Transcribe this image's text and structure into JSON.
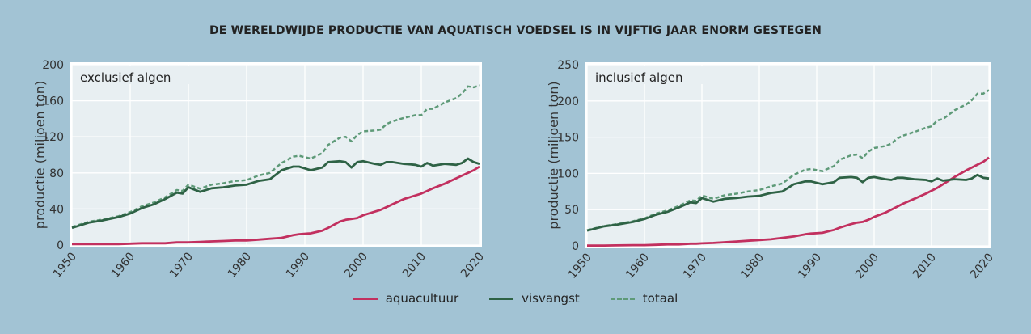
{
  "title": "DE WERELDWIJDE PRODUCTIE VAN AQUATISCH VOEDSEL IS IN VIJFTIG JAAR ENORM GESTEGEN",
  "colors": {
    "aquacultuur": "#c2305f",
    "visvangst": "#2e6245",
    "totaal": "#5e9a78",
    "plot_bg": "#e8eff2",
    "page_bg": "#a2c3d4"
  },
  "legend": [
    {
      "key": "aquacultuur",
      "label": "aquacultuur",
      "style": "solid"
    },
    {
      "key": "visvangst",
      "label": "visvangst",
      "style": "solid"
    },
    {
      "key": "totaal",
      "label": "totaal",
      "style": "dashed"
    }
  ],
  "chart_data": [
    {
      "type": "line",
      "panel_label": "exclusief algen",
      "ylabel": "productie (miljoen ton)",
      "xlabel": "",
      "xlim": [
        1950,
        2020
      ],
      "ylim": [
        0,
        200
      ],
      "xticks": [
        1950,
        1960,
        1970,
        1980,
        1990,
        2000,
        2010,
        2020
      ],
      "yticks": [
        0,
        40,
        80,
        120,
        160,
        200
      ],
      "grid": true,
      "x": [
        1950,
        1953,
        1955,
        1958,
        1960,
        1962,
        1964,
        1966,
        1968,
        1969,
        1970,
        1972,
        1974,
        1976,
        1978,
        1980,
        1982,
        1984,
        1986,
        1988,
        1989,
        1991,
        1993,
        1994,
        1996,
        1997,
        1998,
        1999,
        2000,
        2002,
        2003,
        2004,
        2005,
        2007,
        2009,
        2010,
        2011,
        2012,
        2014,
        2016,
        2017,
        2018,
        2019,
        2020
      ],
      "series": [
        {
          "name": "aquacultuur",
          "values": [
            1,
            1,
            1,
            1,
            1.5,
            2,
            2,
            2,
            3,
            3,
            3,
            3.5,
            4,
            4.5,
            5,
            5,
            6,
            7,
            8,
            11,
            12,
            13,
            16,
            19,
            26,
            28,
            29,
            30,
            33,
            37,
            39,
            42,
            45,
            51,
            55,
            57,
            60,
            63,
            68,
            74,
            77,
            80,
            83,
            87
          ]
        },
        {
          "name": "visvangst",
          "values": [
            19,
            25,
            27,
            31,
            35,
            41,
            45,
            51,
            58,
            57,
            64,
            59,
            63,
            64,
            66,
            67,
            71,
            73,
            83,
            87,
            87,
            83,
            86,
            92,
            93,
            92,
            86,
            92,
            93,
            90,
            89,
            92,
            92,
            90,
            89,
            87,
            91,
            88,
            90,
            89,
            91,
            96,
            92,
            90
          ]
        },
        {
          "name": "totaal",
          "values": [
            20,
            26,
            28,
            32,
            36.5,
            43,
            47,
            53,
            61,
            60,
            67,
            62.5,
            67,
            68.5,
            71,
            72,
            77,
            80,
            91,
            98,
            99,
            96,
            102,
            111,
            119,
            120,
            115,
            122,
            126,
            127,
            128,
            134,
            137,
            141,
            144,
            144,
            151,
            151,
            158,
            163,
            168,
            176,
            175,
            177
          ]
        }
      ]
    },
    {
      "type": "line",
      "panel_label": "inclusief algen",
      "ylabel": "productie (miljoen ton)",
      "xlabel": "",
      "xlim": [
        1950,
        2020
      ],
      "ylim": [
        0,
        250
      ],
      "xticks": [
        1950,
        1960,
        1970,
        1980,
        1990,
        2000,
        2010,
        2020
      ],
      "yticks": [
        0,
        50,
        100,
        150,
        200,
        250
      ],
      "grid": true,
      "x": [
        1950,
        1953,
        1955,
        1958,
        1960,
        1962,
        1964,
        1966,
        1968,
        1969,
        1970,
        1972,
        1974,
        1976,
        1978,
        1980,
        1982,
        1984,
        1986,
        1988,
        1989,
        1991,
        1993,
        1994,
        1996,
        1997,
        1998,
        1999,
        2000,
        2002,
        2003,
        2004,
        2005,
        2007,
        2009,
        2010,
        2011,
        2012,
        2014,
        2016,
        2017,
        2018,
        2019,
        2020
      ],
      "series": [
        {
          "name": "aquacultuur",
          "values": [
            0.5,
            0.5,
            0.7,
            1,
            1,
            1.5,
            2,
            2,
            3,
            3,
            3.5,
            4,
            5,
            6,
            7,
            8,
            9,
            11,
            13,
            16,
            17,
            18,
            22,
            25,
            30,
            32,
            33,
            36,
            40,
            46,
            50,
            54,
            58,
            65,
            72,
            76,
            80,
            85,
            95,
            104,
            108,
            112,
            116,
            122
          ]
        },
        {
          "name": "visvangst",
          "values": [
            21,
            27,
            29,
            33,
            37,
            43,
            47,
            53,
            60,
            59,
            66,
            61,
            65,
            66,
            68,
            69,
            73,
            75,
            85,
            89,
            89,
            85,
            88,
            94,
            95,
            94,
            88,
            94,
            95,
            92,
            91,
            94,
            94,
            92,
            91,
            89,
            93,
            90,
            92,
            91,
            93,
            98,
            94,
            93
          ]
        },
        {
          "name": "totaal",
          "values": [
            21.5,
            27.5,
            29.7,
            34,
            38,
            44.5,
            49,
            55,
            63,
            62,
            69.5,
            65,
            70,
            72,
            75,
            77,
            82,
            86,
            98,
            105,
            106,
            103,
            110,
            119,
            125,
            126,
            121,
            130,
            135,
            138,
            141,
            148,
            152,
            157,
            163,
            165,
            173,
            175,
            187,
            195,
            201,
            210,
            210,
            215
          ]
        }
      ]
    }
  ]
}
